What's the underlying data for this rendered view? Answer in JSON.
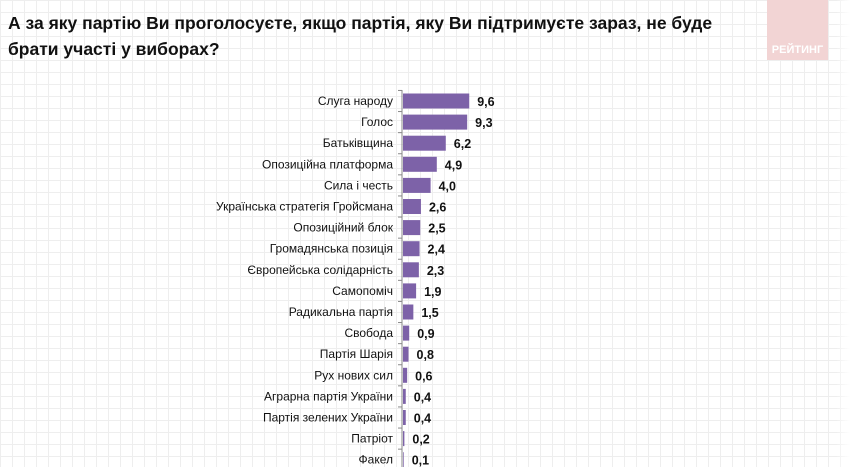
{
  "title": "А за яку партію Ви проголосуєте, якщо партія, яку Ви підтримуєте зараз, не буде брати участі у виборах?",
  "logo": "РЕЙТИНГ",
  "chart_data": {
    "type": "bar",
    "orientation": "horizontal",
    "title": "А за яку партію Ви проголосуєте, якщо партія, яку Ви підтримуєте зараз, не буде брати участі у виборах?",
    "categories": [
      "Слуга народу",
      "Голос",
      "Батьківщина",
      "Опозиційна платформа",
      "Сила і честь",
      "Українська стратегія Гройсмана",
      "Опозиційний блок",
      "Громадянська позиція",
      "Європейська солідарність",
      "Самопоміч",
      "Радикальна партія",
      "Свобода",
      "Партія Шарія",
      "Рух нових сил",
      "Аграрна партія України",
      "Партія зелених України",
      "Патріот",
      "Факел"
    ],
    "values": [
      9.6,
      9.3,
      6.2,
      4.9,
      4.0,
      2.6,
      2.5,
      2.4,
      2.3,
      1.9,
      1.5,
      0.9,
      0.8,
      0.6,
      0.4,
      0.4,
      0.2,
      0.1
    ],
    "value_labels": [
      "9,6",
      "9,3",
      "6,2",
      "4,9",
      "4,0",
      "2,6",
      "2,5",
      "2,4",
      "2,3",
      "1,9",
      "1,5",
      "0,9",
      "0,8",
      "0,6",
      "0,4",
      "0,4",
      "0,2",
      "0,1"
    ],
    "bar_color": "#7d62a8",
    "xlabel": "",
    "ylabel": ""
  }
}
